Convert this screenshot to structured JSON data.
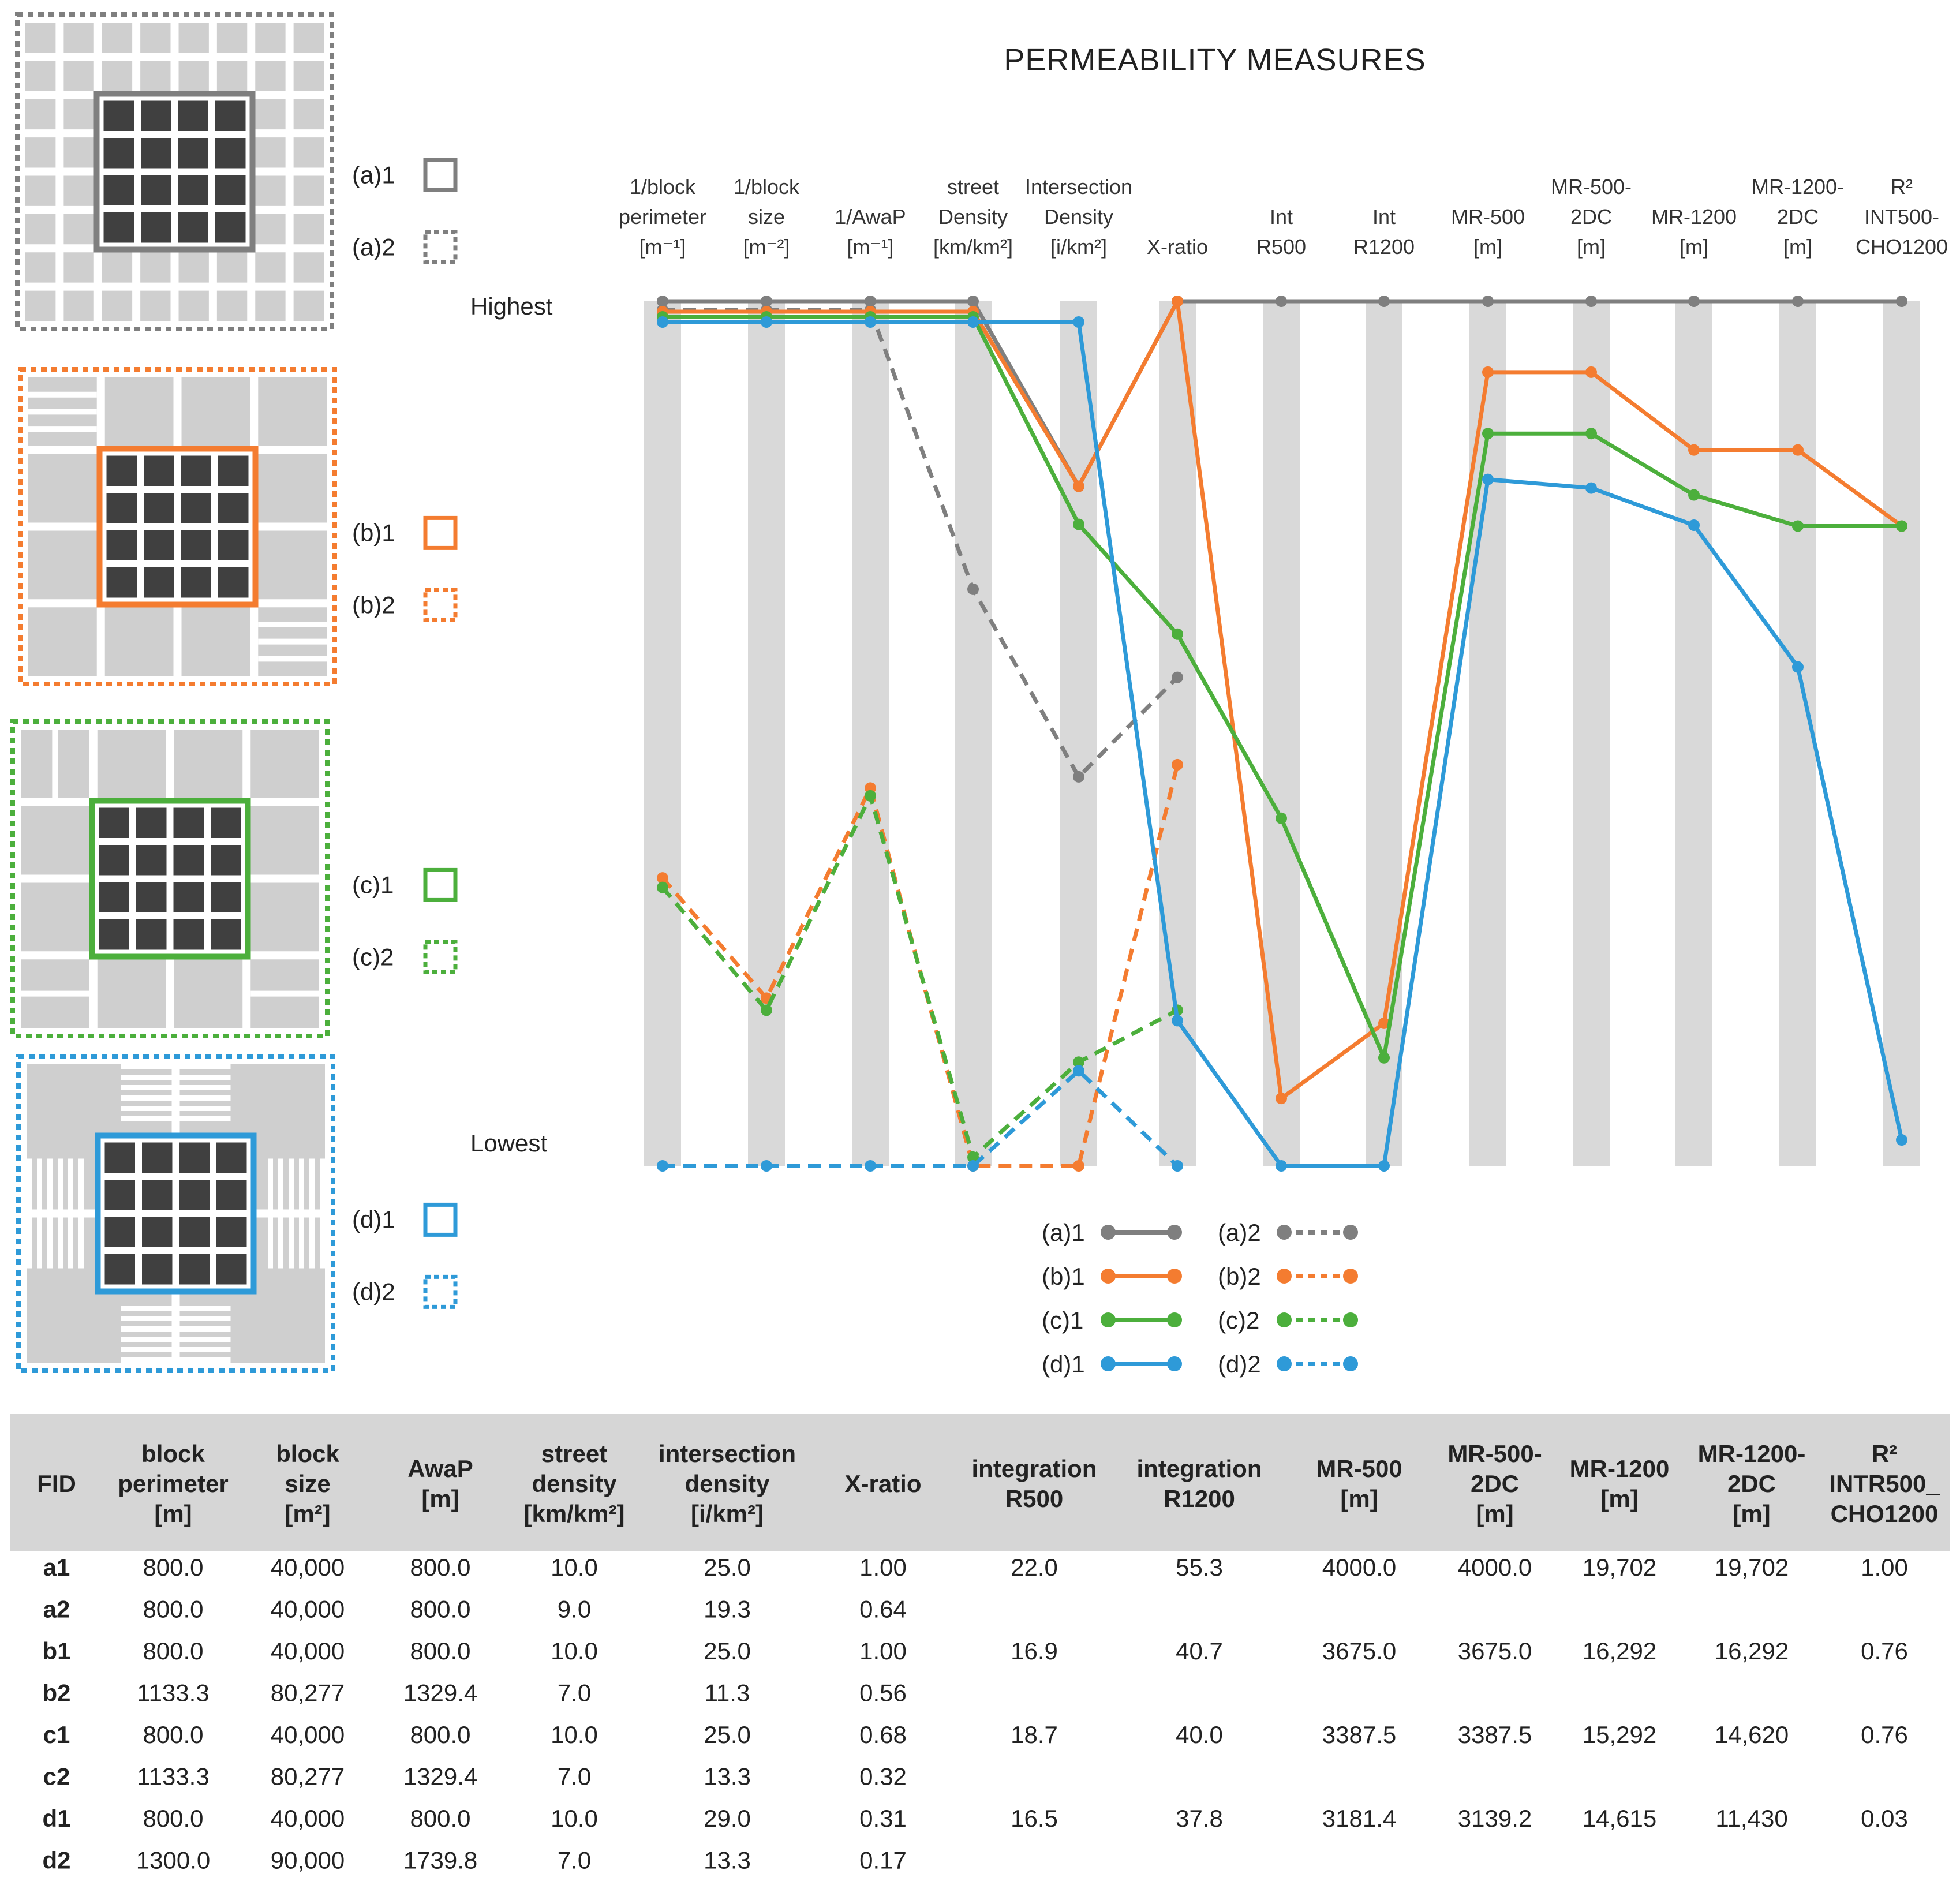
{
  "chart_data": {
    "type": "line",
    "title": "PERMEABILITY MEASURES",
    "axes": [
      [
        "1/block",
        "perimeter",
        "[m⁻¹]"
      ],
      [
        "1/block",
        "size",
        "[m⁻²]"
      ],
      [
        "1/AwaP",
        "[m⁻¹]"
      ],
      [
        "street",
        "Density",
        "[km/km²]"
      ],
      [
        "Intersection",
        "Density",
        "[i/km²]"
      ],
      [
        "X-ratio"
      ],
      [
        "Int",
        "R500"
      ],
      [
        "Int",
        "R1200"
      ],
      [
        "MR-500",
        "[m]"
      ],
      [
        "MR-500-",
        "2DC",
        "[m]"
      ],
      [
        "MR-1200",
        "[m]"
      ],
      [
        "MR-1200-",
        "2DC",
        "[m]"
      ],
      [
        "R²",
        "INT500-",
        "CHO1200"
      ]
    ],
    "ylim": [
      0,
      1
    ],
    "highest_label": "Highest",
    "lowest_label": "Lowest",
    "series": [
      {
        "name": "(a)1",
        "color": "#7f7f7f",
        "dashed": false,
        "values": [
          1.0,
          1.0,
          1.0,
          1.0,
          0.786,
          1.0,
          1.0,
          1.0,
          1.0,
          1.0,
          1.0,
          1.0,
          1.0
        ]
      },
      {
        "name": "(a)2",
        "color": "#7f7f7f",
        "dashed": true,
        "values": [
          0.99,
          0.99,
          0.99,
          0.667,
          0.45,
          0.565
        ]
      },
      {
        "name": "(b)1",
        "color": "#f47c30",
        "dashed": false,
        "values": [
          0.988,
          0.988,
          0.988,
          0.988,
          0.786,
          1.0,
          0.078,
          0.165,
          0.918,
          0.918,
          0.828,
          0.828,
          0.74
        ]
      },
      {
        "name": "(b)2",
        "color": "#f47c30",
        "dashed": true,
        "values": [
          0.333,
          0.194,
          0.437,
          0.0,
          0.0,
          0.464
        ]
      },
      {
        "name": "(c)1",
        "color": "#4caf3c",
        "dashed": false,
        "values": [
          0.982,
          0.982,
          0.982,
          0.982,
          0.742,
          0.615,
          0.402,
          0.125,
          0.847,
          0.847,
          0.776,
          0.74,
          0.74
        ]
      },
      {
        "name": "(c)2",
        "color": "#4caf3c",
        "dashed": true,
        "values": [
          0.322,
          0.18,
          0.428,
          0.01,
          0.12,
          0.18
        ]
      },
      {
        "name": "(d)1",
        "color": "#2e9ad8",
        "dashed": false,
        "values": [
          0.976,
          0.976,
          0.976,
          0.976,
          0.976,
          0.168,
          0.0,
          0.0,
          0.794,
          0.784,
          0.741,
          0.577,
          0.03
        ]
      },
      {
        "name": "(d)2",
        "color": "#2e9ad8",
        "dashed": true,
        "values": [
          0.0,
          0.0,
          0.0,
          0.0,
          0.11,
          0.0
        ]
      }
    ]
  },
  "diagrams": [
    {
      "label1": "(a)1",
      "label2": "(a)2",
      "color": "#7f7f7f"
    },
    {
      "label1": "(b)1",
      "label2": "(b)2",
      "color": "#f47c30"
    },
    {
      "label1": "(c)1",
      "label2": "(c)2",
      "color": "#4caf3c"
    },
    {
      "label1": "(d)1",
      "label2": "(d)2",
      "color": "#2e9ad8"
    }
  ],
  "table": {
    "headers": [
      [
        "FID"
      ],
      [
        "block",
        "perimeter",
        "[m]"
      ],
      [
        "block",
        "size",
        "[m²]"
      ],
      [
        "AwaP",
        "[m]"
      ],
      [
        "street",
        "density",
        "[km/km²]"
      ],
      [
        "intersection",
        "density",
        "[i/km²]"
      ],
      [
        "X-ratio"
      ],
      [
        "integration",
        "R500"
      ],
      [
        "integration",
        "R1200"
      ],
      [
        "MR-500",
        "[m]"
      ],
      [
        "MR-500-",
        "2DC",
        "[m]"
      ],
      [
        "MR-1200",
        "[m]"
      ],
      [
        "MR-1200-",
        "2DC",
        "[m]"
      ],
      [
        "R²",
        "INTR500_",
        "CHO1200"
      ]
    ],
    "rows": [
      [
        "a1",
        "800.0",
        "40,000",
        "800.0",
        "10.0",
        "25.0",
        "1.00",
        "22.0",
        "55.3",
        "4000.0",
        "4000.0",
        "19,702",
        "19,702",
        "1.00"
      ],
      [
        "a2",
        "800.0",
        "40,000",
        "800.0",
        "9.0",
        "19.3",
        "0.64",
        "",
        "",
        "",
        "",
        "",
        "",
        ""
      ],
      [
        "b1",
        "800.0",
        "40,000",
        "800.0",
        "10.0",
        "25.0",
        "1.00",
        "16.9",
        "40.7",
        "3675.0",
        "3675.0",
        "16,292",
        "16,292",
        "0.76"
      ],
      [
        "b2",
        "1133.3",
        "80,277",
        "1329.4",
        "7.0",
        "11.3",
        "0.56",
        "",
        "",
        "",
        "",
        "",
        "",
        ""
      ],
      [
        "c1",
        "800.0",
        "40,000",
        "800.0",
        "10.0",
        "25.0",
        "0.68",
        "18.7",
        "40.0",
        "3387.5",
        "3387.5",
        "15,292",
        "14,620",
        "0.76"
      ],
      [
        "c2",
        "1133.3",
        "80,277",
        "1329.4",
        "7.0",
        "13.3",
        "0.32",
        "",
        "",
        "",
        "",
        "",
        "",
        ""
      ],
      [
        "d1",
        "800.0",
        "40,000",
        "800.0",
        "10.0",
        "29.0",
        "0.31",
        "16.5",
        "37.8",
        "3181.4",
        "3139.2",
        "14,615",
        "11,430",
        "0.03"
      ],
      [
        "d2",
        "1300.0",
        "90,000",
        "1739.8",
        "7.0",
        "13.3",
        "0.17",
        "",
        "",
        "",
        "",
        "",
        "",
        ""
      ]
    ]
  }
}
